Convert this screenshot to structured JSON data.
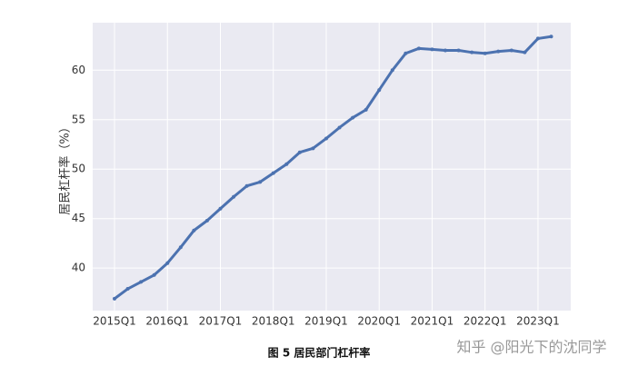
{
  "chart_data": {
    "type": "line",
    "y_label": "居民杠杆率（%）",
    "caption": "图 5   居民部门杠杆率",
    "watermark": "知乎 @阳光下的沈同学",
    "categories": [
      "2015Q1",
      null,
      null,
      null,
      "2016Q1",
      null,
      null,
      null,
      "2017Q1",
      null,
      null,
      null,
      "2018Q1",
      null,
      null,
      null,
      "2019Q1",
      null,
      null,
      null,
      "2020Q1",
      null,
      null,
      null,
      "2021Q1",
      null,
      null,
      null,
      "2022Q1",
      null,
      null,
      null,
      "2023Q1",
      null
    ],
    "values": [
      36.9,
      37.9,
      38.6,
      39.3,
      40.5,
      42.1,
      43.8,
      44.8,
      46.0,
      47.2,
      48.3,
      48.7,
      49.6,
      50.5,
      51.7,
      52.1,
      53.1,
      54.2,
      55.2,
      56.0,
      58.0,
      60.0,
      61.7,
      62.2,
      62.1,
      62.0,
      62.0,
      61.8,
      61.7,
      61.9,
      62.0,
      61.8,
      63.2,
      63.4
    ],
    "color": "#4c72b0",
    "ylim": [
      35.7,
      64.8
    ],
    "yticks": [
      40,
      45,
      50,
      55,
      60
    ],
    "grid": true
  }
}
